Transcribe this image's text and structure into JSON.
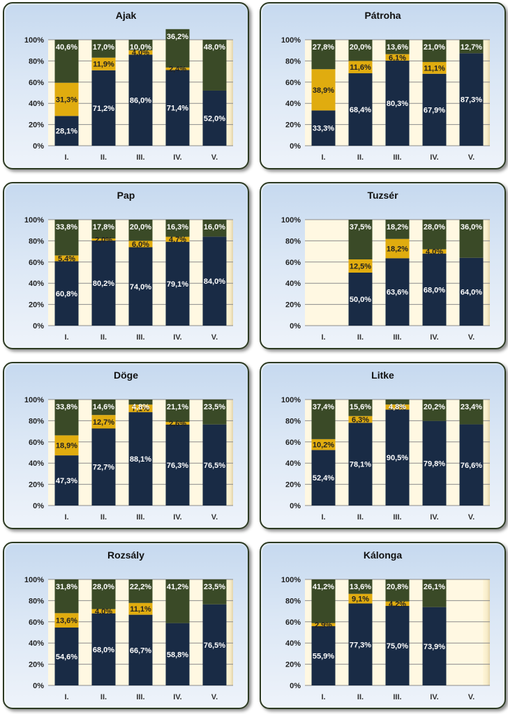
{
  "colors": {
    "bottom": "#192b45",
    "middle": "#e0ac0f",
    "top": "#3a4a27",
    "plot_bg": "#fff8e2",
    "gap_bg": "#fdf6da"
  },
  "chart_data": [
    {
      "type": "bar",
      "title": "Ajak",
      "categories": [
        "I.",
        "II.",
        "III.",
        "IV.",
        "V."
      ],
      "yticks": [
        "0%",
        "20%",
        "40%",
        "60%",
        "80%",
        "100%"
      ],
      "ylim": [
        0,
        100
      ],
      "series": [
        {
          "values": [
            28.1,
            71.2,
            86.0,
            71.4,
            52.0
          ],
          "labels": [
            "28,1%",
            "71,2%",
            "86,0%",
            "71,4%",
            "52,0%"
          ]
        },
        {
          "values": [
            31.3,
            11.9,
            4.0,
            2.4,
            0
          ],
          "labels": [
            "31,3%",
            "11,9%",
            "4,0%",
            "2,4%",
            ""
          ]
        },
        {
          "values": [
            40.6,
            17.0,
            10.0,
            36.2,
            48.0
          ],
          "labels": [
            "40,6%",
            "17,0%",
            "10,0%",
            "36,2%",
            "48,0%"
          ]
        }
      ]
    },
    {
      "type": "bar",
      "title": "Pátroha",
      "categories": [
        "I.",
        "II.",
        "III.",
        "IV.",
        "V."
      ],
      "yticks": [
        "0%",
        "20%",
        "40%",
        "60%",
        "80%",
        "100%"
      ],
      "ylim": [
        0,
        100
      ],
      "series": [
        {
          "values": [
            33.3,
            68.4,
            80.3,
            67.9,
            87.3
          ],
          "labels": [
            "33,3%",
            "68,4%",
            "80,3%",
            "67,9%",
            "87,3%"
          ]
        },
        {
          "values": [
            38.9,
            11.6,
            6.1,
            11.1,
            0
          ],
          "labels": [
            "38,9%",
            "11,6%",
            "6,1%",
            "11,1%",
            ""
          ]
        },
        {
          "values": [
            27.8,
            20.0,
            13.6,
            21.0,
            12.7
          ],
          "labels": [
            "27,8%",
            "20,0%",
            "13,6%",
            "21,0%",
            "12,7%"
          ]
        }
      ]
    },
    {
      "type": "bar",
      "title": "Pap",
      "categories": [
        "I.",
        "II.",
        "III.",
        "IV.",
        "V."
      ],
      "yticks": [
        "0%",
        "20%",
        "40%",
        "60%",
        "80%",
        "100%"
      ],
      "ylim": [
        0,
        100
      ],
      "series": [
        {
          "values": [
            60.8,
            80.2,
            74.0,
            79.1,
            84.0
          ],
          "labels": [
            "60,8%",
            "80,2%",
            "74,0%",
            "79,1%",
            "84,0%"
          ]
        },
        {
          "values": [
            5.4,
            2.0,
            6.0,
            4.7,
            0
          ],
          "labels": [
            "5,4%",
            "2,0%",
            "6,0%",
            "4,7%",
            ""
          ]
        },
        {
          "values": [
            33.8,
            17.8,
            20.0,
            16.3,
            16.0
          ],
          "labels": [
            "33,8%",
            "17,8%",
            "20,0%",
            "16,3%",
            "16,0%"
          ]
        }
      ]
    },
    {
      "type": "bar",
      "title": "Tuzsér",
      "categories": [
        "I.",
        "II.",
        "III.",
        "IV.",
        "V."
      ],
      "yticks": [
        "0%",
        "20%",
        "40%",
        "60%",
        "80%",
        "100%"
      ],
      "ylim": [
        0,
        100
      ],
      "series": [
        {
          "values": [
            0,
            50.0,
            63.6,
            68.0,
            64.0
          ],
          "labels": [
            "",
            "50,0%",
            "63,6%",
            "68,0%",
            "64,0%"
          ]
        },
        {
          "values": [
            0,
            12.5,
            18.2,
            4.0,
            0
          ],
          "labels": [
            "",
            "12,5%",
            "18,2%",
            "4,0%",
            ""
          ]
        },
        {
          "values": [
            0,
            37.5,
            18.2,
            28.0,
            36.0
          ],
          "labels": [
            "",
            "37,5%",
            "18,2%",
            "28,0%",
            "36,0%"
          ]
        }
      ]
    },
    {
      "type": "bar",
      "title": "Döge",
      "categories": [
        "I.",
        "II.",
        "III.",
        "IV.",
        "V."
      ],
      "yticks": [
        "0%",
        "20%",
        "40%",
        "60%",
        "80%",
        "100%"
      ],
      "ylim": [
        0,
        100
      ],
      "series": [
        {
          "values": [
            47.3,
            72.7,
            88.1,
            76.3,
            76.5
          ],
          "labels": [
            "47,3%",
            "72,7%",
            "88,1%",
            "76,3%",
            "76,5%"
          ]
        },
        {
          "values": [
            18.9,
            12.7,
            7.1,
            2.6,
            0
          ],
          "labels": [
            "18,9%",
            "12,7%",
            "7,1%",
            "2,6%",
            ""
          ]
        },
        {
          "values": [
            33.8,
            14.6,
            4.8,
            21.1,
            23.5
          ],
          "labels": [
            "33,8%",
            "14,6%",
            "4,8%",
            "21,1%",
            "23,5%"
          ]
        }
      ]
    },
    {
      "type": "bar",
      "title": "Litke",
      "categories": [
        "I.",
        "II.",
        "III.",
        "IV.",
        "V."
      ],
      "yticks": [
        "0%",
        "20%",
        "40%",
        "60%",
        "80%",
        "100%"
      ],
      "ylim": [
        0,
        100
      ],
      "series": [
        {
          "values": [
            52.4,
            78.1,
            90.5,
            79.8,
            76.6
          ],
          "labels": [
            "52,4%",
            "78,1%",
            "90,5%",
            "79,8%",
            "76,6%"
          ]
        },
        {
          "values": [
            10.2,
            6.3,
            4.8,
            0,
            0
          ],
          "labels": [
            "10,2%",
            "6,3%",
            "4,8%",
            "",
            ""
          ]
        },
        {
          "values": [
            37.4,
            15.6,
            4.8,
            20.2,
            23.4
          ],
          "labels": [
            "37,4%",
            "15,6%",
            "4,8%",
            "20,2%",
            "23,4%"
          ]
        }
      ]
    },
    {
      "type": "bar",
      "title": "Rozsály",
      "categories": [
        "I.",
        "II.",
        "III.",
        "IV.",
        "V."
      ],
      "yticks": [
        "0%",
        "20%",
        "40%",
        "60%",
        "80%",
        "100%"
      ],
      "ylim": [
        0,
        100
      ],
      "series": [
        {
          "values": [
            54.6,
            68.0,
            66.7,
            58.8,
            76.5
          ],
          "labels": [
            "54,6%",
            "68,0%",
            "66,7%",
            "58,8%",
            "76,5%"
          ]
        },
        {
          "values": [
            13.6,
            4.0,
            11.1,
            0,
            0
          ],
          "labels": [
            "13,6%",
            "4,0%",
            "11,1%",
            "",
            ""
          ]
        },
        {
          "values": [
            31.8,
            28.0,
            22.2,
            41.2,
            23.5
          ],
          "labels": [
            "31,8%",
            "28,0%",
            "22,2%",
            "41,2%",
            "23,5%"
          ]
        }
      ]
    },
    {
      "type": "bar",
      "title": "Kálonga",
      "categories": [
        "I.",
        "II.",
        "III.",
        "IV.",
        "V."
      ],
      "yticks": [
        "0%",
        "20%",
        "40%",
        "60%",
        "80%",
        "100%"
      ],
      "ylim": [
        0,
        100
      ],
      "series": [
        {
          "values": [
            55.9,
            77.3,
            75.0,
            73.9,
            0
          ],
          "labels": [
            "55,9%",
            "77,3%",
            "75,0%",
            "73,9%",
            ""
          ]
        },
        {
          "values": [
            2.9,
            9.1,
            4.2,
            0,
            0
          ],
          "labels": [
            "2,9%",
            "9,1%",
            "4,2%",
            "",
            ""
          ]
        },
        {
          "values": [
            41.2,
            13.6,
            20.8,
            26.1,
            0
          ],
          "labels": [
            "41,2%",
            "13,6%",
            "20,8%",
            "26,1%",
            ""
          ]
        }
      ]
    }
  ]
}
